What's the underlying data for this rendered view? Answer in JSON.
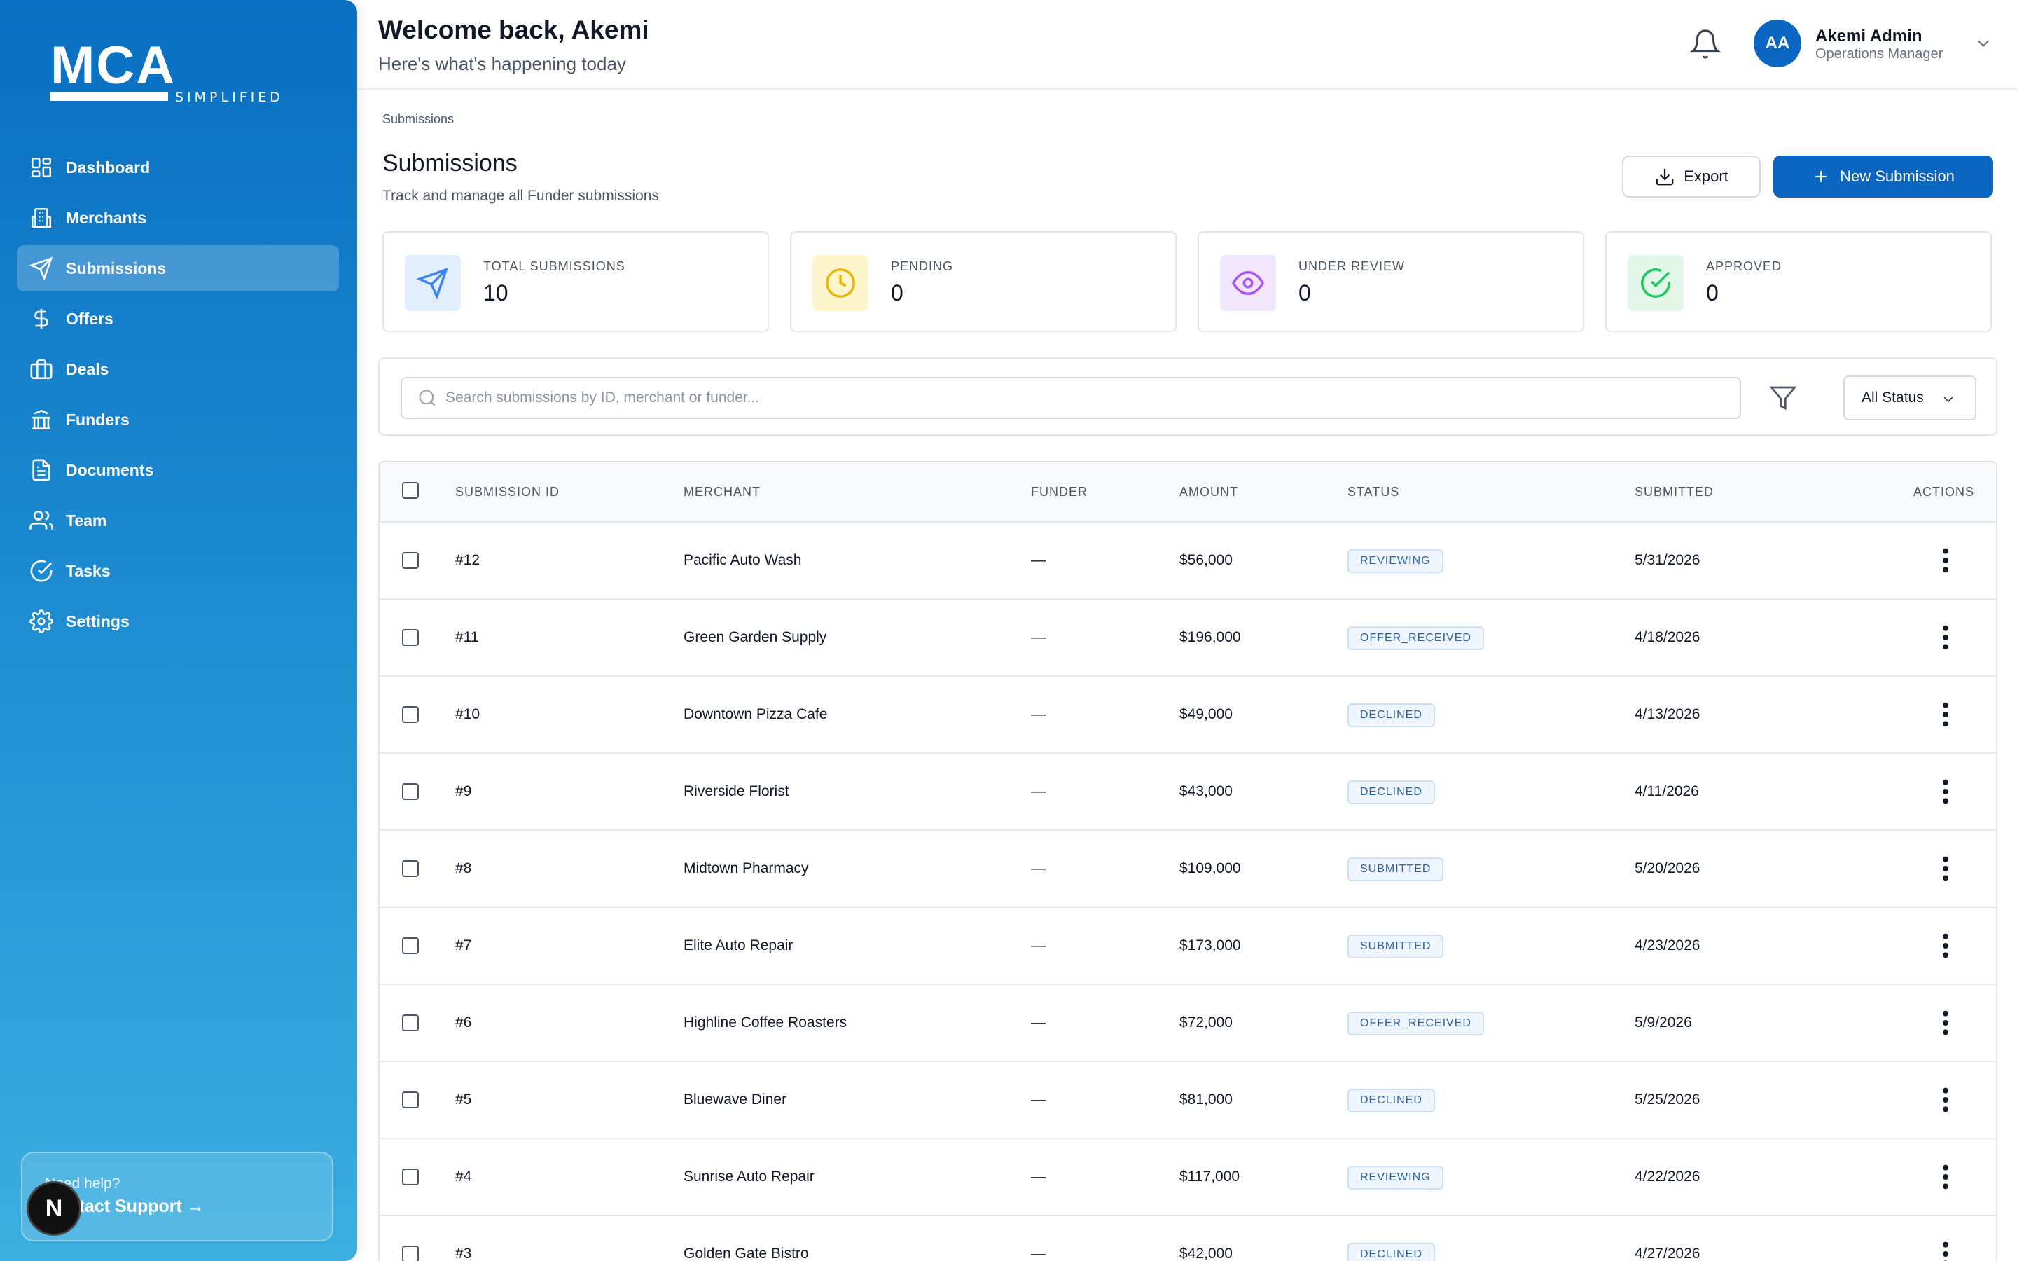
{
  "sidebar": {
    "logo_main": "MCA",
    "logo_sub": "SIMPLIFIED",
    "items": [
      {
        "label": "Dashboard",
        "icon": "dashboard-icon"
      },
      {
        "label": "Merchants",
        "icon": "building-icon"
      },
      {
        "label": "Submissions",
        "icon": "send-icon",
        "active": true
      },
      {
        "label": "Offers",
        "icon": "dollar-icon"
      },
      {
        "label": "Deals",
        "icon": "briefcase-icon"
      },
      {
        "label": "Funders",
        "icon": "bank-icon"
      },
      {
        "label": "Documents",
        "icon": "document-icon"
      },
      {
        "label": "Team",
        "icon": "team-icon"
      },
      {
        "label": "Tasks",
        "icon": "check-circle-icon"
      },
      {
        "label": "Settings",
        "icon": "gear-icon"
      }
    ],
    "help_text": "Need help?",
    "support_link": "Contact Support →",
    "badge_letter": "N"
  },
  "header": {
    "greeting": "Welcome back, Akemi",
    "subtitle": "Here's what's happening today",
    "avatar_initials": "AA",
    "user_name": "Akemi Admin",
    "user_role": "Operations Manager"
  },
  "page": {
    "breadcrumb": "Submissions",
    "title": "Submissions",
    "subtitle": "Track and manage all Funder submissions",
    "export_label": "Export",
    "new_label": "New Submission"
  },
  "stats": [
    {
      "label": "TOTAL SUBMISSIONS",
      "value": "10",
      "icon": "send-icon",
      "color": "#3b82f6",
      "bg": "#e3eefc"
    },
    {
      "label": "PENDING",
      "value": "0",
      "icon": "clock-icon",
      "color": "#eab308",
      "bg": "#fdf6cc"
    },
    {
      "label": "UNDER REVIEW",
      "value": "0",
      "icon": "eye-icon",
      "color": "#a855f7",
      "bg": "#f1e6fc"
    },
    {
      "label": "APPROVED",
      "value": "0",
      "icon": "check-circle-icon",
      "color": "#22c55e",
      "bg": "#e2f7e8"
    }
  ],
  "search": {
    "placeholder": "Search submissions by ID, merchant or funder...",
    "value": "",
    "status_filter": "All Status"
  },
  "table": {
    "headers": [
      "SUBMISSION ID",
      "MERCHANT",
      "FUNDER",
      "AMOUNT",
      "STATUS",
      "SUBMITTED",
      "ACTIONS"
    ],
    "rows": [
      {
        "id": "#12",
        "merchant": "Pacific Auto Wash",
        "funder": "—",
        "amount": "$56,000",
        "status": "REVIEWING",
        "submitted": "5/31/2026"
      },
      {
        "id": "#11",
        "merchant": "Green Garden Supply",
        "funder": "—",
        "amount": "$196,000",
        "status": "OFFER_RECEIVED",
        "submitted": "4/18/2026"
      },
      {
        "id": "#10",
        "merchant": "Downtown Pizza Cafe",
        "funder": "—",
        "amount": "$49,000",
        "status": "DECLINED",
        "submitted": "4/13/2026"
      },
      {
        "id": "#9",
        "merchant": "Riverside Florist",
        "funder": "—",
        "amount": "$43,000",
        "status": "DECLINED",
        "submitted": "4/11/2026"
      },
      {
        "id": "#8",
        "merchant": "Midtown Pharmacy",
        "funder": "—",
        "amount": "$109,000",
        "status": "SUBMITTED",
        "submitted": "5/20/2026"
      },
      {
        "id": "#7",
        "merchant": "Elite Auto Repair",
        "funder": "—",
        "amount": "$173,000",
        "status": "SUBMITTED",
        "submitted": "4/23/2026"
      },
      {
        "id": "#6",
        "merchant": "Highline Coffee Roasters",
        "funder": "—",
        "amount": "$72,000",
        "status": "OFFER_RECEIVED",
        "submitted": "5/9/2026"
      },
      {
        "id": "#5",
        "merchant": "Bluewave Diner",
        "funder": "—",
        "amount": "$81,000",
        "status": "DECLINED",
        "submitted": "5/25/2026"
      },
      {
        "id": "#4",
        "merchant": "Sunrise Auto Repair",
        "funder": "—",
        "amount": "$117,000",
        "status": "REVIEWING",
        "submitted": "4/22/2026"
      },
      {
        "id": "#3",
        "merchant": "Golden Gate Bistro",
        "funder": "—",
        "amount": "$42,000",
        "status": "DECLINED",
        "submitted": "4/27/2026"
      }
    ]
  }
}
